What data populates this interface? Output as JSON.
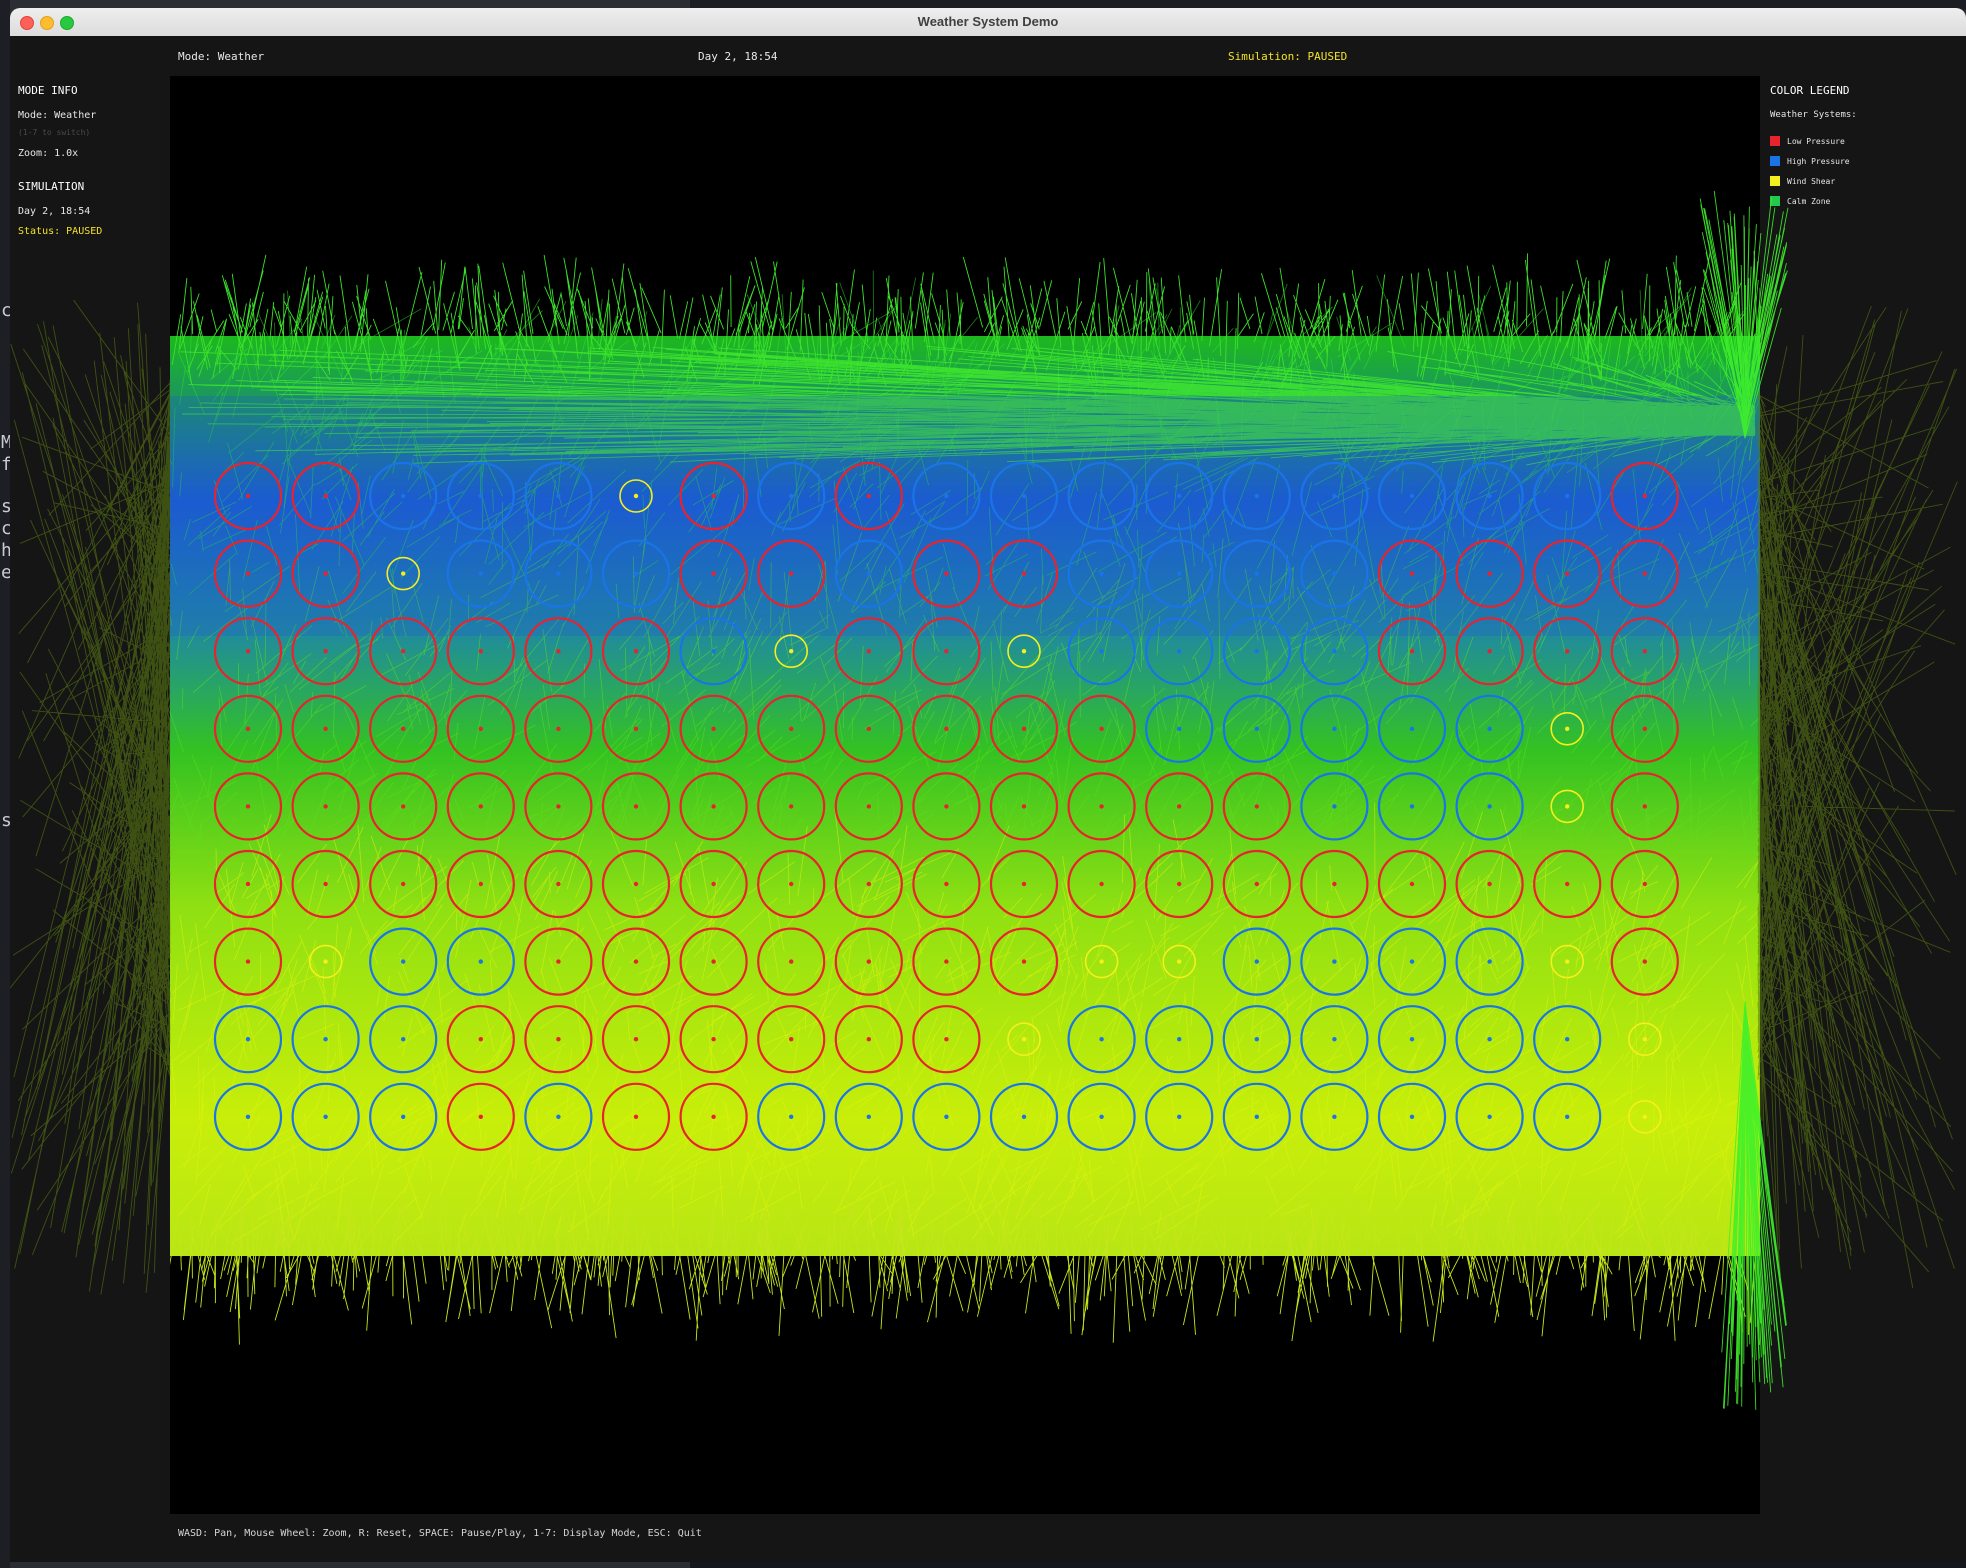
{
  "window": {
    "title": "Weather System Demo"
  },
  "topbar": {
    "mode": "Mode: Weather",
    "time": "Day 2, 18:54",
    "status": "Simulation: PAUSED"
  },
  "left_panel": {
    "mode_heading": "MODE INFO",
    "mode_line": "Mode: Weather",
    "mode_hint": "(1-7 to switch)",
    "zoom": "Zoom: 1.0x",
    "sim_heading": "SIMULATION",
    "sim_time": "Day 2, 18:54",
    "sim_status": "Status: PAUSED"
  },
  "right_panel": {
    "heading": "COLOR LEGEND",
    "subheading": "Weather Systems:",
    "items": [
      {
        "label": "Low Pressure",
        "color": "#e8232e"
      },
      {
        "label": "High Pressure",
        "color": "#1a74e8"
      },
      {
        "label": "Wind Shear",
        "color": "#f5ef1d"
      },
      {
        "label": "Calm Zone",
        "color": "#22c94a"
      }
    ]
  },
  "bottombar": {
    "help": "WASD: Pan, Mouse Wheel: Zoom, R: Reset, SPACE: Pause/Play, 1-7: Display Mode, ESC: Quit"
  },
  "desktop_fragments": [
    "c",
    "M",
    "f",
    "s",
    "c",
    "h",
    "e",
    "s"
  ],
  "grid": {
    "columns": 19,
    "rows": [
      "LLHHHWLHLHHHHHHHHHL",
      "LLWHHHLLHLLHHHHLLLL",
      "LLLLLLHWLLWHHHHLLLL",
      "LLLLLLLLLLLLHHHHHWL",
      "LLLLLLLLLLLLLLHHHWL",
      "LLLLLLLLLLLLLLLLLLL",
      "LWHHLLLLLLLWWHHHHWL",
      "HHHLLLLLLLWHHHHHHHW",
      "HHHLHLLHHHHHHHHHHHW"
    ],
    "codes": {
      "L": "low-pressure",
      "H": "high-pressure",
      "W": "wind-shear"
    }
  }
}
